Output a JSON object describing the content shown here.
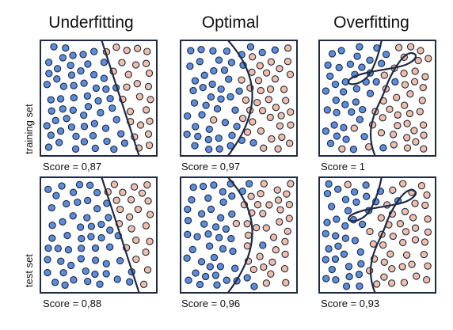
{
  "columns": [
    {
      "title": "Underfitting"
    },
    {
      "title": "Optimal"
    },
    {
      "title": "Overfitting"
    }
  ],
  "rows": [
    {
      "label": "training set",
      "scores": [
        "Score = 0,87",
        "Score = 0,97",
        "Score = 1"
      ]
    },
    {
      "label": "test set",
      "scores": [
        "Score = 0,88",
        "Score = 0,96",
        "Score = 0,93"
      ]
    }
  ],
  "colors": {
    "class_a_fill": "#5b8ddb",
    "class_b_fill": "#f0bfa6",
    "dot_outline": "#1f2a44",
    "boundary": "#1f2a44"
  }
}
